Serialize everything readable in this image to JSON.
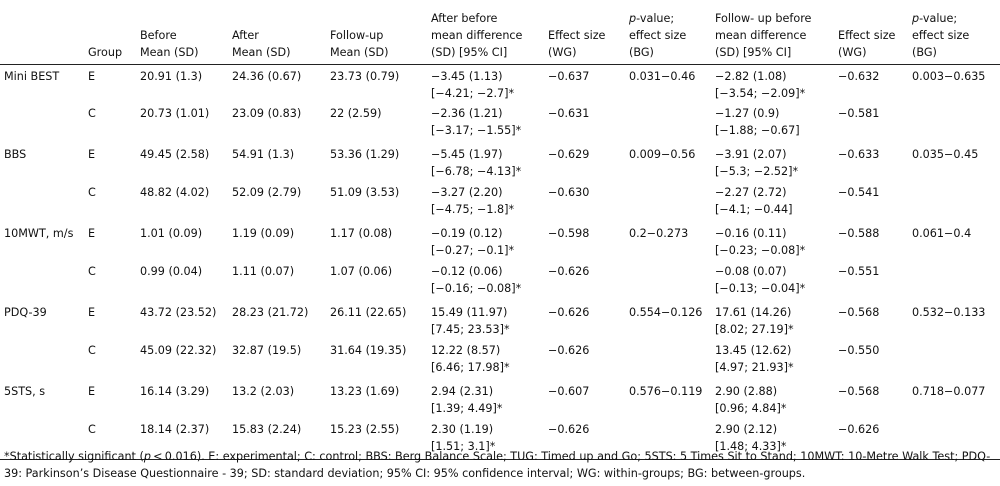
{
  "headers": {
    "measure": "",
    "group": "Group",
    "before": [
      "Before",
      "Mean (SD)"
    ],
    "after": [
      "After",
      "Mean (SD)"
    ],
    "followup": [
      "Follow-up",
      "Mean (SD)"
    ],
    "after_diff": [
      "After before",
      "mean difference",
      "(SD) [95% CI]"
    ],
    "effect_wg_1": [
      "Effect size",
      "(WG)"
    ],
    "pvalue_1": [
      "p",
      "-value;",
      "effect size",
      "(BG)"
    ],
    "followup_diff": [
      "Follow- up before",
      "mean difference",
      "(SD) [95% CI]"
    ],
    "effect_wg_2": [
      "Effect size",
      "(WG)"
    ],
    "pvalue_2": [
      "p",
      "-value;",
      "effect size",
      "(BG)"
    ]
  },
  "rows": [
    {
      "measure": "Mini BEST",
      "pvalue_bg_1": "0.031−0.46",
      "pvalue_bg_2": "0.003−0.635",
      "groups": [
        {
          "group": "E",
          "before": "20.91 (1.3)",
          "after": "24.36 (0.67)",
          "followup": "23.73 (0.79)",
          "after_diff": [
            "−3.45 (1.13)",
            "[−4.21; −2.7]*"
          ],
          "effect_1": "−0.637",
          "fu_diff": [
            "−2.82 (1.08)",
            "[−3.54; −2.09]*"
          ],
          "effect_2": "−0.632"
        },
        {
          "group": "C",
          "before": "20.73 (1.01)",
          "after": "23.09 (0.83)",
          "followup": "22 (2.59)",
          "after_diff": [
            "−2.36 (1.21)",
            "[−3.17; −1.55]*"
          ],
          "effect_1": "−0.631",
          "fu_diff": [
            "−1.27 (0.9)",
            "[−1.88; −0.67]"
          ],
          "effect_2": "−0.581"
        }
      ]
    },
    {
      "measure": "BBS",
      "pvalue_bg_1": "0.009−0.56",
      "pvalue_bg_2": "0.035−0.45",
      "groups": [
        {
          "group": "E",
          "before": "49.45 (2.58)",
          "after": "54.91 (1.3)",
          "followup": "53.36 (1.29)",
          "after_diff": [
            "−5.45 (1.97)",
            "[−6.78; −4.13]*"
          ],
          "effect_1": "−0.629",
          "fu_diff": [
            "−3.91 (2.07)",
            "[−5.3; −2.52]*"
          ],
          "effect_2": "−0.633"
        },
        {
          "group": "C",
          "before": "48.82 (4.02)",
          "after": "52.09 (2.79)",
          "followup": "51.09 (3.53)",
          "after_diff": [
            "−3.27 (2.20)",
            "[−4.75; −1.8]*"
          ],
          "effect_1": "−0.630",
          "fu_diff": [
            "−2.27 (2.72)",
            "[−4.1; −0.44]"
          ],
          "effect_2": "−0.541"
        }
      ]
    },
    {
      "measure": "10MWT, m/s",
      "pvalue_bg_1": "0.2−0.273",
      "pvalue_bg_2": "0.061−0.4",
      "groups": [
        {
          "group": "E",
          "before": "1.01 (0.09)",
          "after": "1.19 (0.09)",
          "followup": "1.17 (0.08)",
          "after_diff": [
            "−0.19 (0.12)",
            "[−0.27; −0.1]*"
          ],
          "effect_1": "−0.598",
          "fu_diff": [
            "−0.16 (0.11)",
            "[−0.23; −0.08]*"
          ],
          "effect_2": "−0.588"
        },
        {
          "group": "C",
          "before": "0.99 (0.04)",
          "after": "1.11 (0.07)",
          "followup": "1.07 (0.06)",
          "after_diff": [
            "−0.12 (0.06)",
            "[−0.16; −0.08]*"
          ],
          "effect_1": "−0.626",
          "fu_diff": [
            "−0.08 (0.07)",
            "[−0.13; −0.04]*"
          ],
          "effect_2": "−0.551"
        }
      ]
    },
    {
      "measure": "PDQ-39",
      "pvalue_bg_1": "0.554−0.126",
      "pvalue_bg_2": "0.532−0.133",
      "groups": [
        {
          "group": "E",
          "before": "43.72 (23.52)",
          "after": "28.23 (21.72)",
          "followup": "26.11 (22.65)",
          "after_diff": [
            "15.49 (11.97)",
            "[7.45; 23.53]*"
          ],
          "effect_1": "−0.626",
          "fu_diff": [
            "17.61 (14.26)",
            "[8.02; 27.19]*"
          ],
          "effect_2": "−0.568"
        },
        {
          "group": "C",
          "before": "45.09 (22.32)",
          "after": "32.87 (19.5)",
          "followup": "31.64 (19.35)",
          "after_diff": [
            "12.22 (8.57)",
            "[6.46; 17.98]*"
          ],
          "effect_1": "−0.626",
          "fu_diff": [
            "13.45 (12.62)",
            "[4.97; 21.93]*"
          ],
          "effect_2": "−0.550"
        }
      ]
    },
    {
      "measure": "5STS, s",
      "pvalue_bg_1": "0.576−0.119",
      "pvalue_bg_2": "0.718−0.077",
      "groups": [
        {
          "group": "E",
          "before": "16.14 (3.29)",
          "after": "13.2 (2.03)",
          "followup": "13.23 (1.69)",
          "after_diff": [
            "2.94 (2.31)",
            "[1.39; 4.49]*"
          ],
          "effect_1": "−0.607",
          "fu_diff": [
            "2.90 (2.88)",
            "[0.96; 4.84]*"
          ],
          "effect_2": "−0.568"
        },
        {
          "group": "C",
          "before": "18.14 (2.37)",
          "after": "15.83 (2.24)",
          "followup": "15.23 (2.55)",
          "after_diff": [
            "2.30 (1.19)",
            "[1.51; 3.1]*"
          ],
          "effect_1": "−0.626",
          "fu_diff": [
            "2.90 (2.12)",
            "[1.48; 4.33]*"
          ],
          "effect_2": "−0.626"
        }
      ]
    }
  ],
  "footnote": {
    "lead": "*Statistically significant (",
    "p": "p",
    "cond": " < 0.016). E: experimental; C: control; BBS: Berg Balance Scale; TUG: Timed up and Go; 5STS: 5 Times Sit to Stand; 10MWT: 10-Metre Walk Test; PDQ-39: Parkinson’s Disease Questionnaire - 39; SD: standard deviation; 95% CI: 95% confidence interval; WG: within-groups; BG: between-groups."
  }
}
